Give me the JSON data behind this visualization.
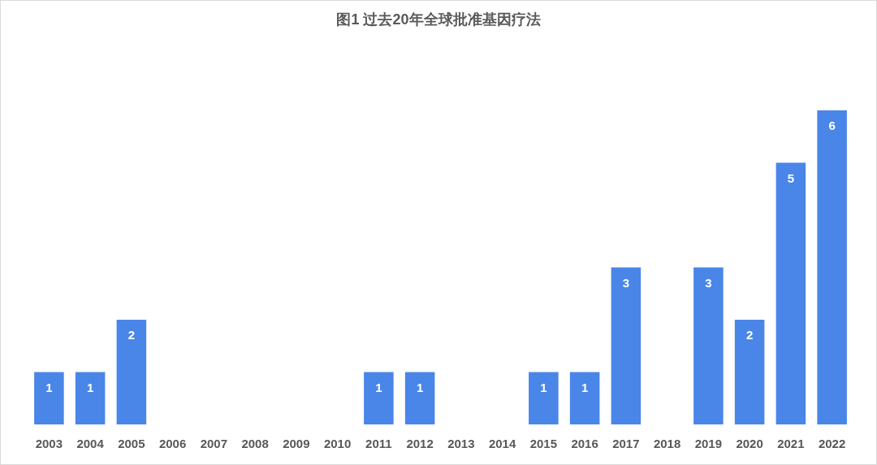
{
  "chart_data": {
    "type": "bar",
    "title": "图1 过去20年全球批准基因疗法",
    "categories": [
      "2003",
      "2004",
      "2005",
      "2006",
      "2007",
      "2008",
      "2009",
      "2010",
      "2011",
      "2012",
      "2013",
      "2014",
      "2015",
      "2016",
      "2017",
      "2018",
      "2019",
      "2020",
      "2021",
      "2022"
    ],
    "values": [
      1,
      1,
      2,
      0,
      0,
      0,
      0,
      0,
      1,
      1,
      0,
      0,
      1,
      1,
      3,
      0,
      3,
      2,
      5,
      6
    ],
    "value_labels": [
      "1",
      "1",
      "2",
      null,
      null,
      null,
      null,
      null,
      "1",
      "1",
      null,
      null,
      "1",
      "1",
      "3",
      null,
      "3",
      "2",
      "5",
      "6"
    ],
    "color": "#4a86e8"
  }
}
